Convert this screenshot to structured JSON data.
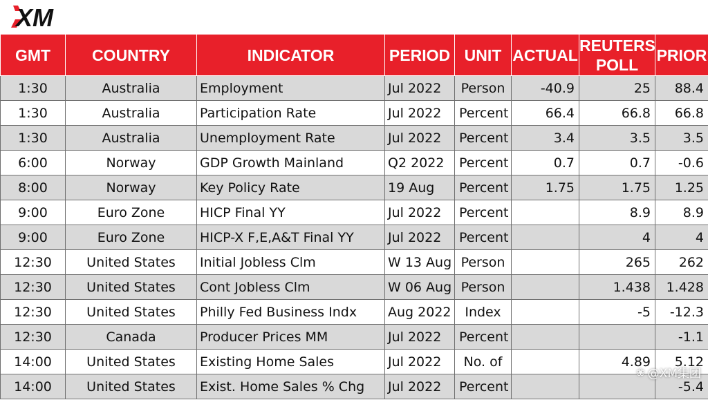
{
  "brand": {
    "logo_text": "XM",
    "logo_color": "#e8202a"
  },
  "table": {
    "header_color": "#e8202a",
    "headers": {
      "gmt": "GMT",
      "country": "COUNTRY",
      "indicator": "INDICATOR",
      "period": "PERIOD",
      "unit": "UNIT",
      "actual": "ACTUAL",
      "reuters_poll": "REUTERS POLL",
      "prior": "PRIOR"
    },
    "rows": [
      {
        "gmt": "1:30",
        "country": "Australia",
        "indicator": "Employment",
        "period": "Jul 2022",
        "unit": "Person",
        "actual": "-40.9",
        "poll": "25",
        "prior": "88.4"
      },
      {
        "gmt": "1:30",
        "country": "Australia",
        "indicator": "Participation Rate",
        "period": "Jul 2022",
        "unit": "Percent",
        "actual": "66.4",
        "poll": "66.8",
        "prior": "66.8"
      },
      {
        "gmt": "1:30",
        "country": "Australia",
        "indicator": "Unemployment Rate",
        "period": "Jul 2022",
        "unit": "Percent",
        "actual": "3.4",
        "poll": "3.5",
        "prior": "3.5"
      },
      {
        "gmt": "6:00",
        "country": "Norway",
        "indicator": "GDP Growth Mainland",
        "period": "Q2 2022",
        "unit": "Percent",
        "actual": "0.7",
        "poll": "0.7",
        "prior": "-0.6"
      },
      {
        "gmt": "8:00",
        "country": "Norway",
        "indicator": "Key Policy Rate",
        "period": "19 Aug",
        "unit": "Percent",
        "actual": "1.75",
        "poll": "1.75",
        "prior": "1.25"
      },
      {
        "gmt": "9:00",
        "country": "Euro Zone",
        "indicator": "HICP Final YY",
        "period": "Jul 2022",
        "unit": "Percent",
        "actual": "",
        "poll": "8.9",
        "prior": "8.9"
      },
      {
        "gmt": "9:00",
        "country": "Euro Zone",
        "indicator": "HICP-X F,E,A&T Final YY",
        "period": "Jul 2022",
        "unit": "Percent",
        "actual": "",
        "poll": "4",
        "prior": "4"
      },
      {
        "gmt": "12:30",
        "country": "United States",
        "indicator": "Initial Jobless Clm",
        "period": "W 13 Aug",
        "unit": "Person",
        "actual": "",
        "poll": "265",
        "prior": "262"
      },
      {
        "gmt": "12:30",
        "country": "United States",
        "indicator": "Cont Jobless Clm",
        "period": "W 06 Aug",
        "unit": "Person",
        "actual": "",
        "poll": "1.438",
        "prior": "1.428"
      },
      {
        "gmt": "12:30",
        "country": "United States",
        "indicator": "Philly Fed Business Indx",
        "period": "Aug 2022",
        "unit": "Index",
        "actual": "",
        "poll": "-5",
        "prior": "-12.3"
      },
      {
        "gmt": "12:30",
        "country": "Canada",
        "indicator": "Producer Prices MM",
        "period": "Jul 2022",
        "unit": "Percent",
        "actual": "",
        "poll": "",
        "prior": "-1.1"
      },
      {
        "gmt": "14:00",
        "country": "United States",
        "indicator": "Existing Home Sales",
        "period": "Jul 2022",
        "unit": "No. of",
        "actual": "",
        "poll": "4.89",
        "prior": "5.12"
      },
      {
        "gmt": "14:00",
        "country": "United States",
        "indicator": "Exist. Home Sales % Chg",
        "period": "Jul 2022",
        "unit": "Percent",
        "actual": "",
        "poll": "",
        "prior": "-5.4"
      }
    ]
  },
  "watermark": {
    "text": "@XM集团"
  }
}
